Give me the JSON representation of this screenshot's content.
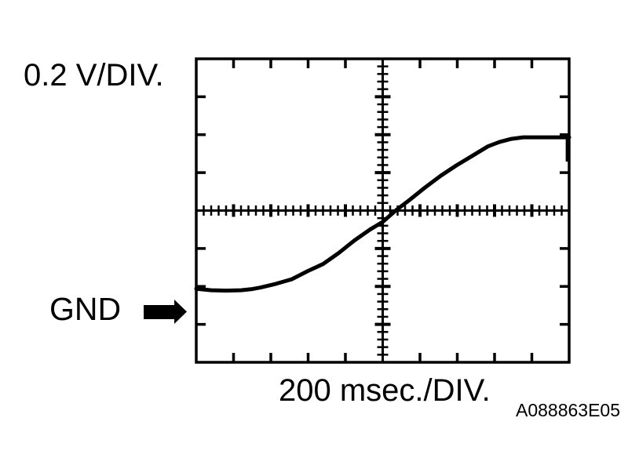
{
  "labels": {
    "volts_per_div": "0.2 V/DIV.",
    "gnd": "GND",
    "time_per_div": "200 msec./DIV.",
    "figure_code": "A088863E05"
  },
  "icons": {
    "gnd_arrow": "solid-right-arrow"
  },
  "colors": {
    "ink": "#000000",
    "background": "#ffffff"
  },
  "chart_data": {
    "type": "line",
    "title": "",
    "x_scale_label": "200 msec./DIV.",
    "y_scale_label": "0.2 V/DIV.",
    "x_div_value": 200,
    "x_div_unit": "msec",
    "y_div_value": 0.2,
    "y_div_unit": "V",
    "h_divisions": 10,
    "v_divisions": 8,
    "minor_ticks_per_div": 5,
    "grid_style": "border-edge-ticks-with-center-crosshair",
    "legend": "none",
    "gnd_marker_side": "left",
    "gnd_level_div": -2.07,
    "trace_shape": "s-curve rising from flat low to flat high",
    "trace_low_volts": -0.41,
    "trace_high_volts": 0.39,
    "trace_divs": [
      [
        -5.0,
        -2.06
      ],
      [
        -4.6,
        -2.1
      ],
      [
        -4.2,
        -2.11
      ],
      [
        -3.8,
        -2.1
      ],
      [
        -3.5,
        -2.07
      ],
      [
        -3.28,
        -2.03
      ],
      [
        -2.86,
        -1.93
      ],
      [
        -2.44,
        -1.81
      ],
      [
        -2.02,
        -1.6
      ],
      [
        -1.6,
        -1.41
      ],
      [
        -1.18,
        -1.12
      ],
      [
        -0.76,
        -0.79
      ],
      [
        -0.34,
        -0.5
      ],
      [
        0.0,
        -0.3
      ],
      [
        0.36,
        0.01
      ],
      [
        0.72,
        0.28
      ],
      [
        1.14,
        0.61
      ],
      [
        1.56,
        0.92
      ],
      [
        1.98,
        1.19
      ],
      [
        2.4,
        1.44
      ],
      [
        2.82,
        1.69
      ],
      [
        3.14,
        1.81
      ],
      [
        3.45,
        1.89
      ],
      [
        3.77,
        1.93
      ],
      [
        4.3,
        1.93
      ],
      [
        5.0,
        1.93
      ]
    ],
    "retrace_tail": {
      "t": 4.95,
      "v_from": 1.93,
      "v_to": 1.29
    }
  }
}
